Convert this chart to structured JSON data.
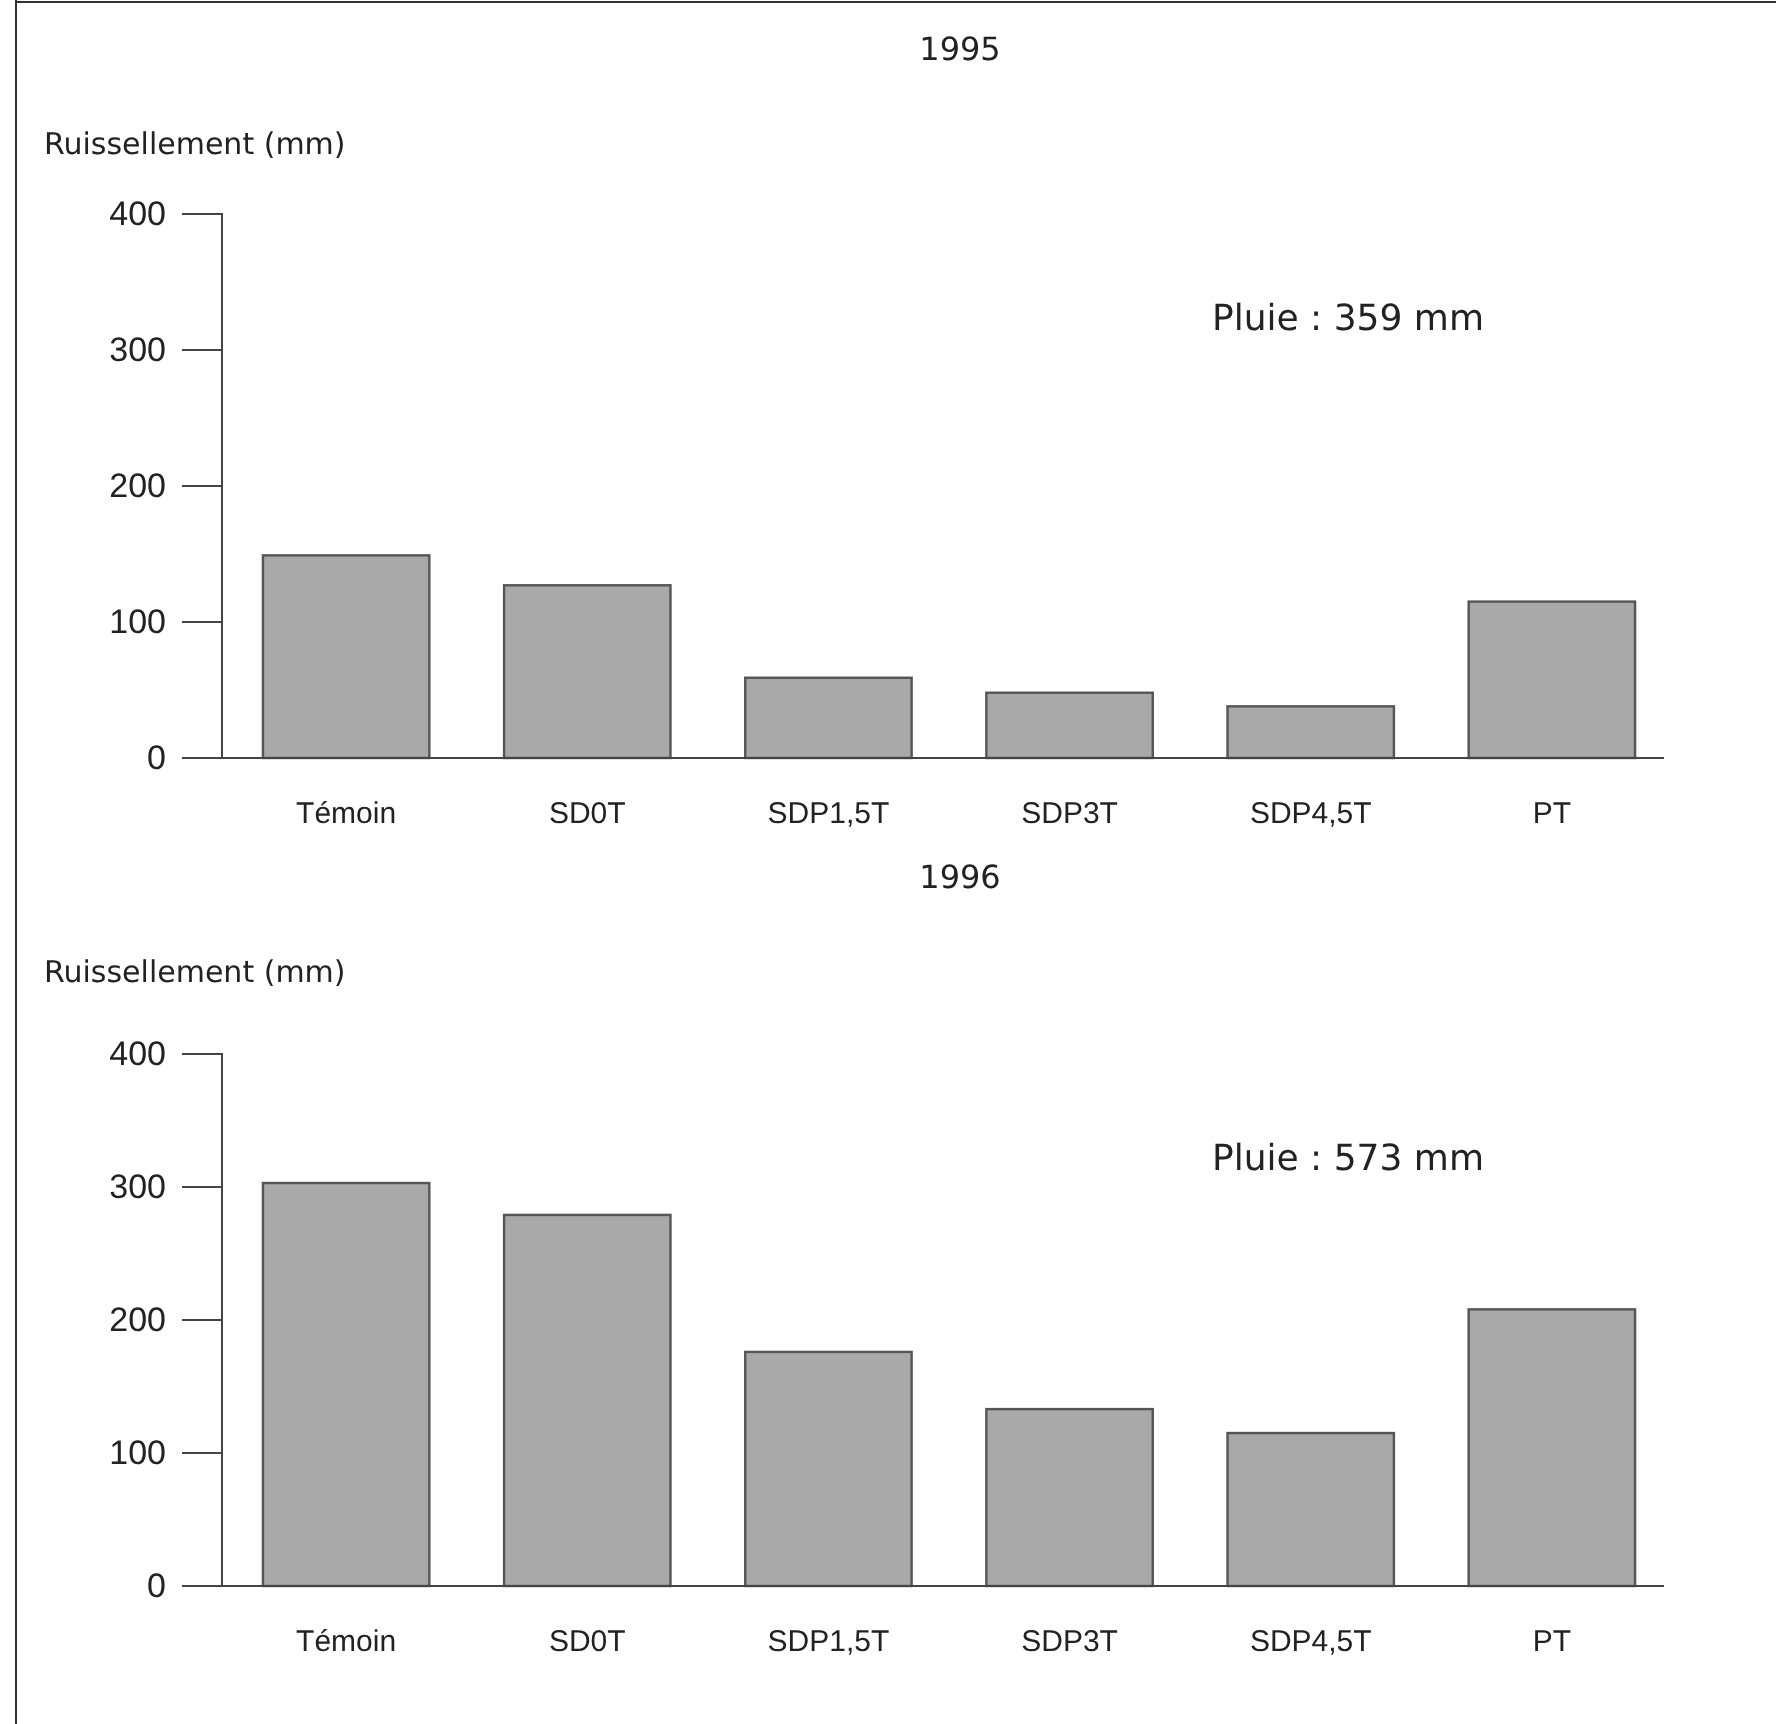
{
  "chart_data": [
    {
      "type": "bar",
      "title": "1995",
      "ylabel": "Ruissellement (mm)",
      "categories": [
        "Témoin",
        "SD0T",
        "SDP1,5T",
        "SDP3T",
        "SDP4,5T",
        "PT"
      ],
      "values": [
        149,
        127,
        59,
        48,
        38,
        115
      ],
      "color": "#a9a9a9",
      "ylim": [
        0,
        400
      ],
      "yticks": [
        0,
        100,
        200,
        300,
        400
      ],
      "annotations": [
        "Pluie : 359 mm"
      ]
    },
    {
      "type": "bar",
      "title": "1996",
      "ylabel": "Ruissellement (mm)",
      "categories": [
        "Témoin",
        "SD0T",
        "SDP1,5T",
        "SDP3T",
        "SDP4,5T",
        "PT"
      ],
      "values": [
        303,
        279,
        176,
        133,
        115,
        208
      ],
      "color": "#a9a9a9",
      "ylim": [
        0,
        400
      ],
      "yticks": [
        0,
        100,
        200,
        300,
        400
      ],
      "annotations": [
        "Pluie : 573 mm"
      ]
    }
  ]
}
